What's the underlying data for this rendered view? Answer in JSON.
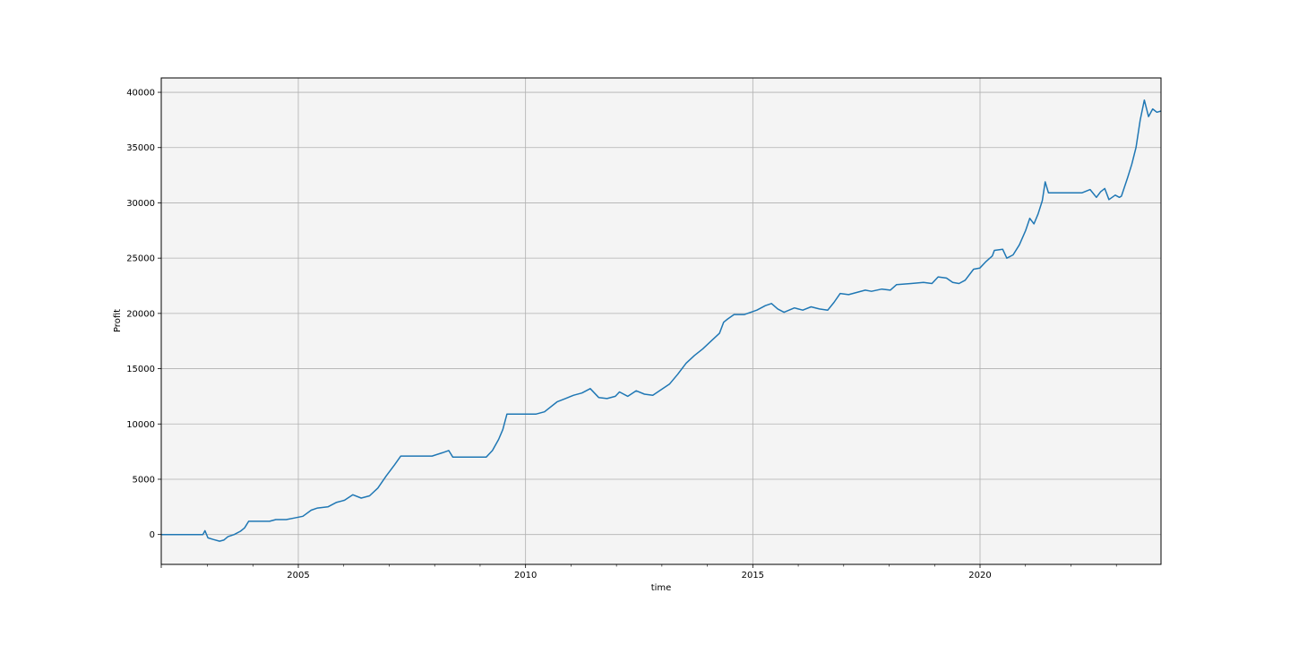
{
  "chart_data": {
    "type": "line",
    "title": "",
    "xlabel": "time",
    "ylabel": "Profit",
    "xlim": [
      2002.0,
      2024.0
    ],
    "ylim": [
      -2700,
      41300
    ],
    "grid": true,
    "legend": "none",
    "background_color": "#f4f4f4",
    "line_color": "#1f77b4",
    "x_ticks": [
      {
        "value": 2005,
        "label": "2005"
      },
      {
        "value": 2010,
        "label": "2010"
      },
      {
        "value": 2015,
        "label": "2015"
      },
      {
        "value": 2020,
        "label": "2020"
      }
    ],
    "x_minor_ticks": [
      2003,
      2004,
      2006,
      2007,
      2008,
      2009,
      2011,
      2012,
      2013,
      2014,
      2016,
      2017,
      2018,
      2019,
      2021,
      2022,
      2023
    ],
    "y_ticks": [
      {
        "value": 0,
        "label": "0"
      },
      {
        "value": 5000,
        "label": "5000"
      },
      {
        "value": 10000,
        "label": "10000"
      },
      {
        "value": 15000,
        "label": "15000"
      },
      {
        "value": 20000,
        "label": "20000"
      },
      {
        "value": 25000,
        "label": "25000"
      },
      {
        "value": 30000,
        "label": "30000"
      },
      {
        "value": 35000,
        "label": "35000"
      },
      {
        "value": 40000,
        "label": "40000"
      }
    ],
    "series": [
      {
        "values": [
          [
            2002.0,
            0
          ],
          [
            2003.0,
            0
          ],
          [
            2003.05,
            350
          ],
          [
            2003.12,
            -300
          ],
          [
            2003.25,
            -450
          ],
          [
            2003.4,
            -600
          ],
          [
            2003.5,
            -500
          ],
          [
            2003.6,
            -200
          ],
          [
            2003.75,
            0
          ],
          [
            2003.9,
            300
          ],
          [
            2004.0,
            600
          ],
          [
            2004.1,
            1200
          ],
          [
            2004.6,
            1200
          ],
          [
            2004.75,
            1350
          ],
          [
            2005.0,
            1350
          ],
          [
            2005.2,
            1500
          ],
          [
            2005.4,
            1650
          ],
          [
            2005.6,
            2200
          ],
          [
            2005.75,
            2400
          ],
          [
            2006.0,
            2500
          ],
          [
            2006.2,
            2900
          ],
          [
            2006.4,
            3100
          ],
          [
            2006.6,
            3600
          ],
          [
            2006.8,
            3300
          ],
          [
            2007.0,
            3500
          ],
          [
            2007.2,
            4200
          ],
          [
            2007.4,
            5300
          ],
          [
            2007.6,
            6300
          ],
          [
            2007.75,
            7100
          ],
          [
            2008.5,
            7100
          ],
          [
            2008.75,
            7400
          ],
          [
            2008.9,
            7600
          ],
          [
            2009.0,
            7000
          ],
          [
            2009.8,
            7000
          ],
          [
            2009.95,
            7600
          ],
          [
            2010.1,
            8600
          ],
          [
            2010.2,
            9500
          ],
          [
            2010.3,
            10900
          ],
          [
            2011.0,
            10900
          ],
          [
            2011.2,
            11100
          ],
          [
            2011.5,
            12000
          ],
          [
            2011.7,
            12300
          ],
          [
            2011.9,
            12600
          ],
          [
            2012.1,
            12800
          ],
          [
            2012.3,
            13200
          ],
          [
            2012.5,
            12400
          ],
          [
            2012.7,
            12300
          ],
          [
            2012.9,
            12500
          ],
          [
            2013.0,
            12900
          ],
          [
            2013.2,
            12500
          ],
          [
            2013.4,
            13000
          ],
          [
            2013.6,
            12700
          ],
          [
            2013.8,
            12600
          ],
          [
            2014.0,
            13100
          ],
          [
            2014.2,
            13600
          ],
          [
            2014.4,
            14500
          ],
          [
            2014.6,
            15500
          ],
          [
            2014.8,
            16200
          ],
          [
            2015.0,
            16800
          ],
          [
            2015.2,
            17500
          ],
          [
            2015.4,
            18200
          ],
          [
            2015.5,
            19200
          ],
          [
            2015.6,
            19500
          ],
          [
            2015.75,
            19900
          ],
          [
            2016.0,
            19900
          ],
          [
            2016.3,
            20300
          ],
          [
            2016.5,
            20700
          ],
          [
            2016.65,
            20900
          ],
          [
            2016.8,
            20400
          ],
          [
            2016.95,
            20100
          ],
          [
            2017.2,
            20500
          ],
          [
            2017.4,
            20300
          ],
          [
            2017.6,
            20600
          ],
          [
            2017.8,
            20400
          ],
          [
            2018.0,
            20300
          ],
          [
            2018.15,
            21000
          ],
          [
            2018.3,
            21800
          ],
          [
            2018.5,
            21700
          ],
          [
            2018.7,
            21900
          ],
          [
            2018.9,
            22100
          ],
          [
            2019.05,
            22000
          ],
          [
            2019.3,
            22200
          ],
          [
            2019.5,
            22100
          ],
          [
            2019.65,
            22600
          ],
          [
            2020.0,
            22700
          ],
          [
            2020.3,
            22800
          ],
          [
            2020.5,
            22700
          ],
          [
            2020.65,
            23300
          ],
          [
            2020.85,
            23200
          ],
          [
            2021.0,
            22800
          ],
          [
            2021.15,
            22700
          ],
          [
            2021.3,
            23000
          ],
          [
            2021.5,
            24000
          ],
          [
            2021.65,
            24100
          ],
          [
            2021.8,
            24700
          ],
          [
            2021.95,
            25200
          ],
          [
            2022.0,
            25700
          ],
          [
            2022.2,
            25800
          ],
          [
            2022.3,
            25000
          ],
          [
            2022.45,
            25300
          ],
          [
            2022.6,
            26200
          ],
          [
            2022.75,
            27500
          ],
          [
            2022.85,
            28600
          ],
          [
            2022.95,
            28100
          ],
          [
            2023.05,
            29000
          ],
          [
            2023.15,
            30200
          ],
          [
            2023.22,
            31900
          ],
          [
            2023.3,
            30900
          ],
          [
            2024.1,
            30900
          ],
          [
            2024.3,
            31200
          ],
          [
            2024.45,
            30500
          ],
          [
            2024.55,
            31000
          ],
          [
            2024.65,
            31300
          ],
          [
            2024.75,
            30300
          ],
          [
            2024.9,
            30700
          ],
          [
            2025.0,
            30500
          ],
          [
            2025.05,
            30600
          ],
          [
            2025.2,
            32300
          ],
          [
            2025.3,
            33500
          ],
          [
            2025.4,
            35000
          ],
          [
            2025.5,
            37500
          ],
          [
            2025.6,
            39300
          ],
          [
            2025.7,
            37800
          ],
          [
            2025.8,
            38500
          ],
          [
            2025.9,
            38200
          ],
          [
            2026.0,
            38300
          ]
        ]
      }
    ]
  }
}
